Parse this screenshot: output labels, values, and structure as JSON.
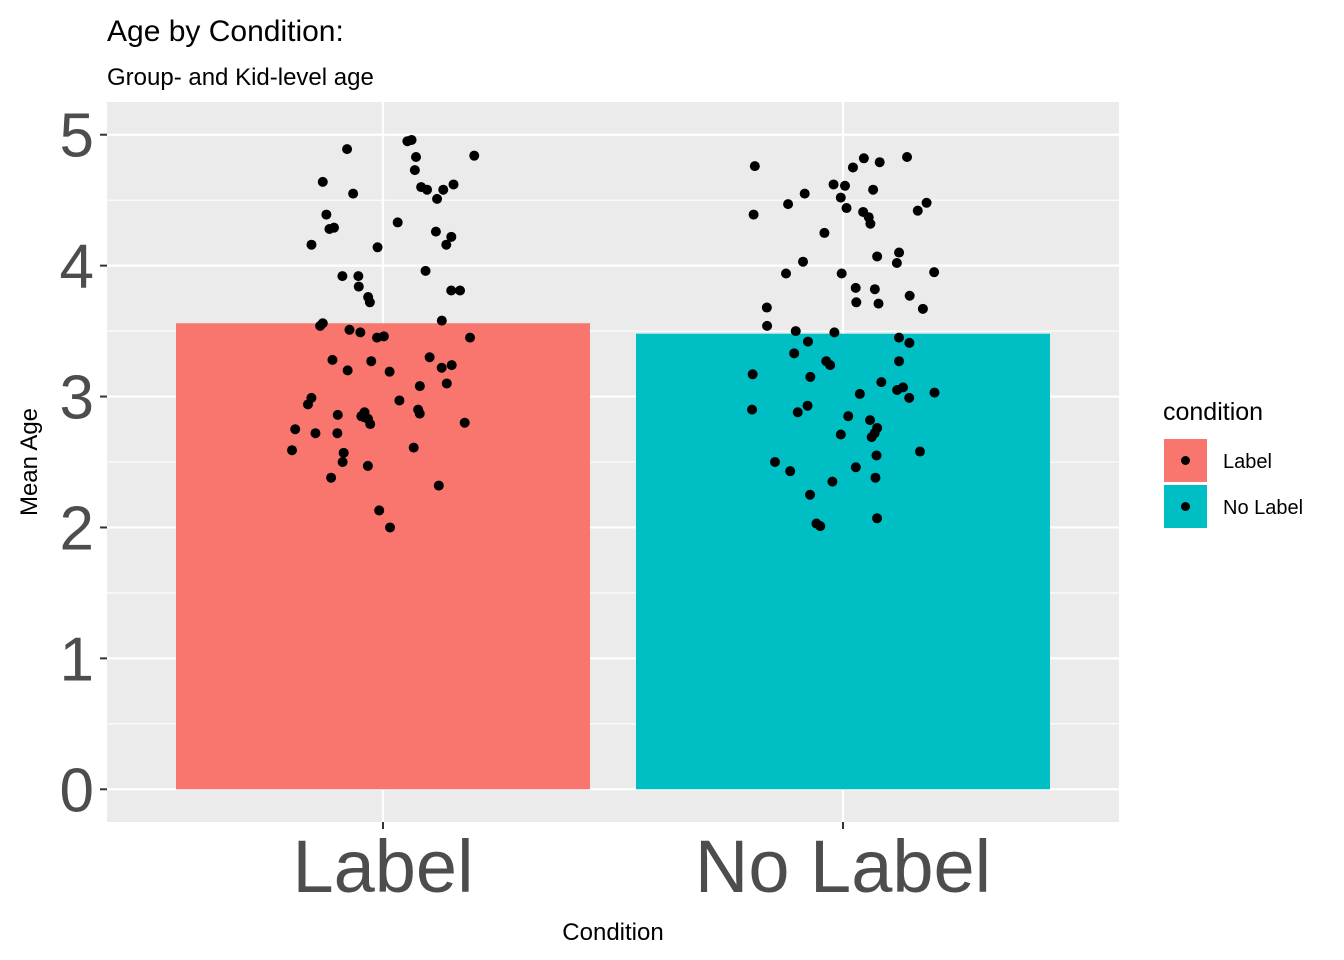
{
  "chart_data": {
    "type": "bar",
    "title": "Age by Condition:",
    "subtitle": "Group- and Kid-level age",
    "xlabel": "Condition",
    "ylabel": "Mean Age",
    "categories": [
      "Label",
      "No Label"
    ],
    "values": [
      3.56,
      3.48
    ],
    "ylim": [
      -0.25,
      5.25
    ],
    "yticks": [
      "0",
      "1",
      "2",
      "3",
      "4",
      "5"
    ],
    "grid": true,
    "legend": {
      "title": "condition",
      "position": "right",
      "entries": [
        "Label",
        "No Label"
      ]
    },
    "colors": {
      "Label": "#F8766D",
      "No Label": "#00BFC4",
      "panel": "#EBEBEB",
      "grid": "#FFFFFF",
      "points": "#000000"
    },
    "points": [
      {
        "category": "Label",
        "values": [
          4.96,
          4.89,
          4.95,
          4.84,
          4.83,
          4.73,
          4.64,
          4.62,
          4.6,
          4.58,
          4.58,
          4.55,
          4.51,
          4.39,
          4.33,
          4.29,
          4.28,
          4.26,
          4.22,
          4.16,
          4.16,
          4.14,
          3.96,
          3.92,
          3.92,
          3.84,
          3.81,
          3.81,
          3.76,
          3.72,
          3.58,
          3.56,
          3.54,
          3.51,
          3.49,
          3.46,
          3.45,
          3.45,
          3.3,
          3.28,
          3.27,
          3.24,
          3.22,
          3.2,
          3.19,
          3.1,
          3.08,
          2.99,
          2.97,
          2.94,
          2.9,
          2.88,
          2.87,
          2.86,
          2.85,
          2.84,
          2.83,
          2.8,
          2.79,
          2.75,
          2.72,
          2.72,
          2.61,
          2.59,
          2.57,
          2.5,
          2.47,
          2.38,
          2.32,
          2.13,
          2.0
        ]
      },
      {
        "category": "No Label",
        "values": [
          4.83,
          4.82,
          4.79,
          4.76,
          4.75,
          4.62,
          4.61,
          4.58,
          4.55,
          4.52,
          4.48,
          4.47,
          4.44,
          4.42,
          4.41,
          4.39,
          4.37,
          4.32,
          4.25,
          4.1,
          4.07,
          4.03,
          4.02,
          3.95,
          3.94,
          3.94,
          3.83,
          3.82,
          3.77,
          3.72,
          3.71,
          3.68,
          3.67,
          3.54,
          3.5,
          3.49,
          3.45,
          3.42,
          3.41,
          3.33,
          3.27,
          3.27,
          3.24,
          3.17,
          3.15,
          3.11,
          3.07,
          3.05,
          3.03,
          3.02,
          2.99,
          2.93,
          2.9,
          2.88,
          2.85,
          2.82,
          2.76,
          2.72,
          2.71,
          2.69,
          2.58,
          2.55,
          2.5,
          2.46,
          2.43,
          2.38,
          2.35,
          2.25,
          2.07,
          2.03,
          2.01
        ]
      }
    ]
  }
}
